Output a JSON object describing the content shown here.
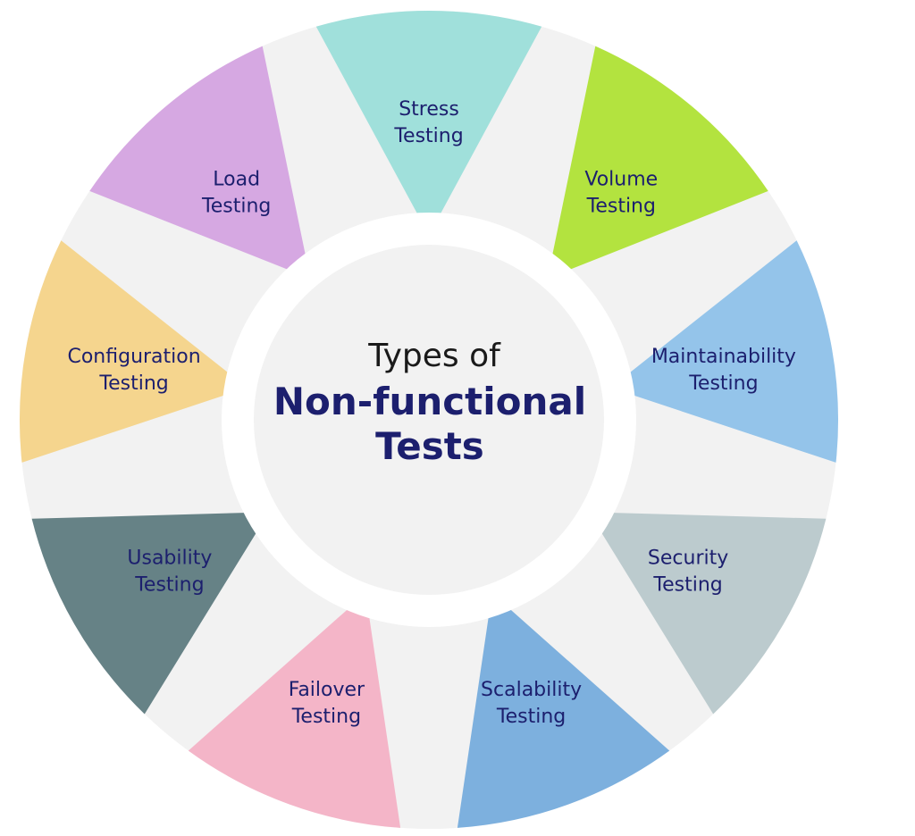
{
  "center": {
    "line1": "Types of",
    "line2": "Non-functional",
    "line3": "Tests"
  },
  "segments": [
    {
      "id": "stress",
      "label1": "Stress",
      "label2": "Testing",
      "color": "#a0e0db"
    },
    {
      "id": "volume",
      "label1": "Volume",
      "label2": "Testing",
      "color": "#b3e33f"
    },
    {
      "id": "maintainability",
      "label1": "Maintainability",
      "label2": "Testing",
      "color": "#94c4ea"
    },
    {
      "id": "security",
      "label1": "Security",
      "label2": "Testing",
      "color": "#bccbce"
    },
    {
      "id": "scalability",
      "label1": "Scalability",
      "label2": "Testing",
      "color": "#7db0de"
    },
    {
      "id": "failover",
      "label1": "Failover",
      "label2": "Testing",
      "color": "#f4b5c8"
    },
    {
      "id": "usability",
      "label1": "Usability",
      "label2": "Testing",
      "color": "#668286"
    },
    {
      "id": "configuration",
      "label1": "Configuration",
      "label2": "Testing",
      "color": "#f5d58e"
    },
    {
      "id": "load",
      "label1": "Load",
      "label2": "Testing",
      "color": "#d6a8e2"
    }
  ],
  "colors": {
    "background_ring": "#f2f2f2",
    "center_fill": "#f2f2f2",
    "center_border": "#ffffff",
    "label_text": "#1c1f6e",
    "center_text_light": "#1a1a1a",
    "center_text_bold": "#1c1f6e"
  }
}
